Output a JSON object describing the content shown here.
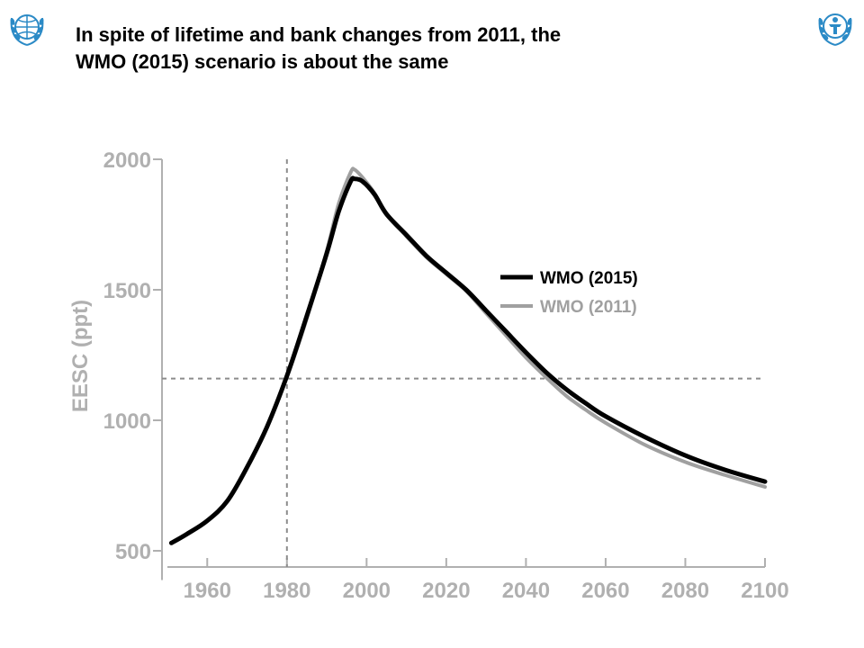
{
  "slide": {
    "title_line1": "In spite of lifetime and bank changes from 2011, the",
    "title_line2": "WMO (2015) scenario is about the same",
    "logos": [
      {
        "name": "wmo-emblem-icon",
        "color": "#2b8ac6"
      },
      {
        "name": "unep-emblem-icon",
        "color": "#2b8ac6"
      }
    ]
  },
  "chart_data": {
    "type": "line",
    "title": "",
    "xlabel": "",
    "ylabel": "EESC (ppt)",
    "xlim": [
      1950,
      2100
    ],
    "ylim": [
      450,
      2000
    ],
    "xticks": [
      1960,
      1980,
      2000,
      2020,
      2040,
      2060,
      2080,
      2100
    ],
    "yticks": [
      500,
      1000,
      1500,
      2000
    ],
    "grid": false,
    "legend": "right",
    "reference_lines": {
      "x": 1980,
      "y": 1160
    },
    "series": [
      {
        "name": "WMO (2015)",
        "color": "#000000",
        "x": [
          1951,
          1955,
          1960,
          1965,
          1970,
          1975,
          1980,
          1985,
          1990,
          1993,
          1996,
          1997,
          1999,
          2002,
          2005,
          2010,
          2015,
          2020,
          2025,
          2030,
          2035,
          2040,
          2045,
          2050,
          2055,
          2060,
          2070,
          2080,
          2090,
          2100
        ],
        "y": [
          530,
          565,
          615,
          690,
          820,
          975,
          1170,
          1400,
          1640,
          1800,
          1915,
          1925,
          1915,
          1865,
          1790,
          1710,
          1630,
          1565,
          1500,
          1420,
          1340,
          1260,
          1185,
          1120,
          1065,
          1015,
          935,
          865,
          810,
          765
        ]
      },
      {
        "name": "WMO (2011)",
        "color": "#a0a0a0",
        "x": [
          1951,
          1955,
          1960,
          1965,
          1970,
          1975,
          1980,
          1985,
          1990,
          1993,
          1996,
          1997,
          1999,
          2002,
          2005,
          2010,
          2015,
          2020,
          2025,
          2030,
          2035,
          2040,
          2045,
          2050,
          2055,
          2060,
          2070,
          2080,
          2090,
          2100
        ],
        "y": [
          530,
          565,
          615,
          690,
          820,
          975,
          1165,
          1390,
          1650,
          1830,
          1950,
          1960,
          1930,
          1870,
          1790,
          1705,
          1625,
          1560,
          1495,
          1410,
          1325,
          1240,
          1165,
          1095,
          1040,
          990,
          905,
          840,
          790,
          745
        ]
      }
    ]
  }
}
